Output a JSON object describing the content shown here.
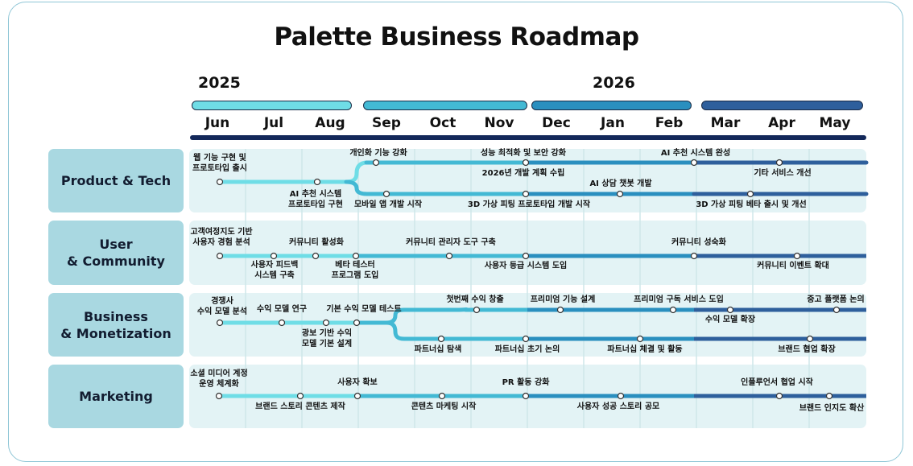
{
  "title": "Palette Business Roadmap",
  "years": [
    "2025",
    "2026"
  ],
  "months": [
    "Jun",
    "Jul",
    "Aug",
    "Sep",
    "Oct",
    "Nov",
    "Dec",
    "Jan",
    "Feb",
    "Mar",
    "Apr",
    "May"
  ],
  "colors": {
    "title": "#111111",
    "axis": "#13285a",
    "row_label_bg": "#a9d8e1",
    "row_bg": "#e3f3f5",
    "phase1": "#6fdde6",
    "phase2": "#43b9d4",
    "phase3": "#2a8fbf",
    "phase4": "#2e5f9c"
  },
  "rows": [
    {
      "label": "Product & Tech",
      "items": [
        "웹 기능 구현 및\n프로토타입 출시",
        "AI 추천 시스템\n프로토타입 구현",
        "개인화 기능 강화",
        "모바일 앱 개발 시작",
        "성능 최적화 및 보안 강화",
        "2026년 개발 계획 수립",
        "3D 가상 피팅 프로토타입 개발 시작",
        "AI 상담 챗봇 개발",
        "AI 추천 시스템 완성",
        "3D 가상 피팅 베타 출시 및 개선",
        "기타 서비스 개선"
      ]
    },
    {
      "label": "User\n& Community",
      "items": [
        "고객여정지도 기반\n사용자 경험 분석",
        "사용자 피드백\n시스템 구축",
        "커뮤니티 활성화",
        "베타 테스터\n프로그램 도입",
        "커뮤니티 관리자 도구 구축",
        "사용자 등급 시스템 도입",
        "커뮤니티 성숙화",
        "커뮤니티 이벤트 확대"
      ]
    },
    {
      "label": "Business\n& Monetization",
      "items": [
        "경쟁사\n수익 모델 분석",
        "수익 모델 연구",
        "광보 기반 수익\n모델 기본 설계",
        "기본 수익 모델 테스트",
        "첫번째 수익 창출",
        "파트너십 탐색",
        "프리미엄 기능 설계",
        "파트너십 초기 논의",
        "프리미엄 구독 서비스 도입",
        "파트너십 체결 및 활동",
        "수익 모델 확장",
        "브랜드 협업 확장",
        "중고 플랫폼 논의"
      ]
    },
    {
      "label": "Marketing",
      "items": [
        "소셜 미디어 계정\n운영 체계화",
        "브랜드 스토리 콘텐츠 제작",
        "사용자 확보",
        "콘텐츠 마케팅 시작",
        "PR 활동 강화",
        "사용자 성공 스토리 공모",
        "인플루언서 협업 시작",
        "브랜드 인지도 확산"
      ]
    }
  ]
}
